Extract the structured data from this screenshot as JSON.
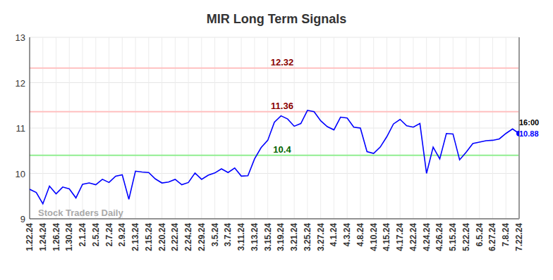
{
  "chart_data": {
    "type": "line",
    "title": "MIR Long Term Signals",
    "categories": [
      "1.22.24",
      null,
      "1.24.24",
      null,
      "1.26.24",
      null,
      "1.30.24",
      null,
      "2.1.24",
      null,
      "2.5.24",
      null,
      "2.7.24",
      null,
      "2.9.24",
      null,
      "2.13.24",
      null,
      "2.15.24",
      null,
      "2.20.24",
      null,
      "2.22.24",
      null,
      "2.24.24",
      null,
      "2.29.24",
      null,
      "3.5.24",
      null,
      "3.7.24",
      null,
      "3.11.24",
      null,
      "3.13.24",
      null,
      "3.15.24",
      null,
      "3.19.24",
      null,
      "3.21.24",
      null,
      "3.25.24",
      null,
      "3.27.24",
      null,
      "4.1.24",
      null,
      "4.3.24",
      null,
      "4.8.24",
      null,
      "4.10.24",
      null,
      "4.15.24",
      null,
      "4.17.24",
      null,
      "4.22.24",
      null,
      "4.24.24",
      null,
      "4.26.24",
      null,
      "5.15.24",
      null,
      "5.22.24",
      null,
      "6.5.24",
      null,
      "6.27.24",
      null,
      "7.8.24",
      null,
      "7.22.24"
    ],
    "values": [
      9.65,
      9.58,
      9.33,
      9.72,
      9.55,
      9.7,
      9.66,
      9.46,
      9.76,
      9.79,
      9.75,
      9.87,
      9.8,
      9.94,
      9.97,
      9.43,
      10.05,
      10.03,
      10.02,
      9.88,
      9.79,
      9.81,
      9.87,
      9.75,
      9.8,
      10.01,
      9.87,
      9.96,
      10.01,
      10.1,
      10.02,
      10.12,
      9.94,
      9.95,
      10.32,
      10.57,
      10.73,
      11.13,
      11.27,
      11.2,
      11.04,
      11.1,
      11.39,
      11.36,
      11.16,
      11.03,
      10.96,
      11.24,
      11.22,
      11.02,
      11.0,
      10.48,
      10.44,
      10.58,
      10.81,
      11.09,
      11.19,
      11.05,
      11.02,
      11.1,
      10.0,
      10.58,
      10.32,
      10.88,
      10.87,
      10.3,
      10.47,
      10.66,
      10.69,
      10.72,
      10.73,
      10.76,
      10.88,
      10.98,
      10.88
    ],
    "color": "#0000ff",
    "ylim": [
      9,
      13
    ],
    "yticks": [
      9,
      10,
      11,
      12,
      13
    ],
    "grid": true,
    "reference_lines": [
      {
        "value": 12.32,
        "label": "12.32",
        "color": "#ffc0c0",
        "label_color": "#8b0000"
      },
      {
        "value": 11.36,
        "label": "11.36",
        "color": "#ffc0c0",
        "label_color": "#8b0000"
      },
      {
        "value": 10.4,
        "label": "10.4",
        "color": "#90ee90",
        "label_color": "#006400"
      }
    ],
    "end_label": {
      "time": "16:00",
      "value": 10.88
    },
    "watermark": "Stock Traders Daily"
  }
}
